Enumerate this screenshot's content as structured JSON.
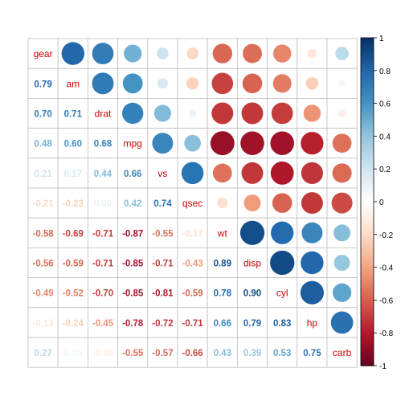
{
  "chart_data": {
    "type": "heatmap",
    "subtype": "correlation-matrix-mixed",
    "upper": "circle",
    "lower": "number",
    "diagonal": "variable-name",
    "variables": [
      "gear",
      "am",
      "drat",
      "mpg",
      "vs",
      "qsec",
      "wt",
      "disp",
      "cyl",
      "hp",
      "carb"
    ],
    "matrix": [
      [
        1.0,
        0.79,
        0.7,
        0.48,
        0.21,
        -0.21,
        -0.58,
        -0.56,
        -0.49,
        -0.13,
        0.27
      ],
      [
        0.79,
        1.0,
        0.71,
        0.6,
        0.17,
        -0.23,
        -0.69,
        -0.59,
        -0.52,
        -0.24,
        0.06
      ],
      [
        0.7,
        0.71,
        1.0,
        0.68,
        0.44,
        0.09,
        -0.71,
        -0.71,
        -0.7,
        -0.45,
        -0.09
      ],
      [
        0.48,
        0.6,
        0.68,
        1.0,
        0.66,
        0.42,
        -0.87,
        -0.85,
        -0.85,
        -0.78,
        -0.55
      ],
      [
        0.21,
        0.17,
        0.44,
        0.66,
        1.0,
        0.74,
        -0.55,
        -0.71,
        -0.81,
        -0.72,
        -0.57
      ],
      [
        -0.21,
        -0.23,
        0.09,
        0.42,
        0.74,
        1.0,
        -0.17,
        -0.43,
        -0.59,
        -0.71,
        -0.66
      ],
      [
        -0.58,
        -0.69,
        -0.71,
        -0.87,
        -0.55,
        -0.17,
        1.0,
        0.89,
        0.78,
        0.66,
        0.43
      ],
      [
        -0.56,
        -0.59,
        -0.71,
        -0.85,
        -0.71,
        -0.43,
        0.89,
        1.0,
        0.9,
        0.79,
        0.39
      ],
      [
        -0.49,
        -0.52,
        -0.7,
        -0.85,
        -0.81,
        -0.59,
        0.78,
        0.9,
        1.0,
        0.83,
        0.53
      ],
      [
        -0.13,
        -0.24,
        -0.45,
        -0.78,
        -0.72,
        -0.71,
        0.66,
        0.79,
        0.83,
        1.0,
        0.75
      ],
      [
        0.27,
        0.06,
        -0.09,
        -0.55,
        -0.57,
        -0.66,
        0.43,
        0.39,
        0.53,
        0.75,
        1.0
      ]
    ],
    "color_range": [
      -1,
      1
    ],
    "colorbar_ticks": [
      "1",
      "0.8",
      "0.6",
      "0.4",
      "0.2",
      "0",
      "-0.2",
      "-0.4",
      "-0.6",
      "-0.8",
      "-1"
    ],
    "colorbar_values": [
      1,
      0.8,
      0.6,
      0.4,
      0.2,
      0,
      -0.2,
      -0.4,
      -0.6,
      -0.8,
      -1
    ],
    "palette": [
      "#67001F",
      "#B2182B",
      "#D6604D",
      "#F4A582",
      "#FDDBC7",
      "#FFFFFF",
      "#D1E5F0",
      "#92C5DE",
      "#4393C3",
      "#2166AC",
      "#053061"
    ],
    "diagonal_label_color": "#CC0000",
    "grid": true,
    "legend_position": "right",
    "title": "",
    "xlabel": "",
    "ylabel": ""
  }
}
